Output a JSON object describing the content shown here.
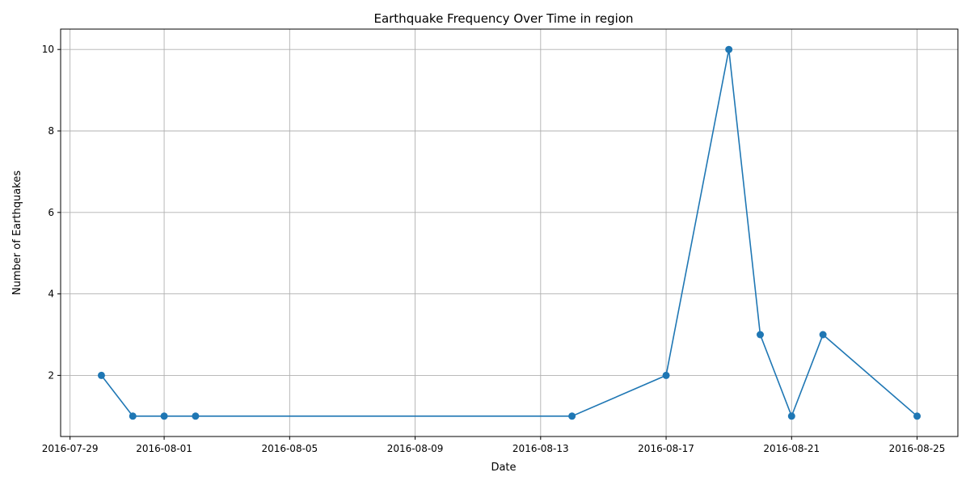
{
  "chart_data": {
    "type": "line",
    "title": "Earthquake Frequency Over Time in region",
    "xlabel": "Date",
    "ylabel": "Number of Earthquakes",
    "x_axis_type": "date",
    "xlim": [
      "2016-07-29",
      "2016-08-25"
    ],
    "ylim": [
      0.5,
      10.5
    ],
    "x_ticks": [
      "2016-07-29",
      "2016-08-01",
      "2016-08-05",
      "2016-08-09",
      "2016-08-13",
      "2016-08-17",
      "2016-08-21",
      "2016-08-25"
    ],
    "y_ticks": [
      2,
      4,
      6,
      8,
      10
    ],
    "grid": true,
    "marker": "circle",
    "series": [
      {
        "color": "#1f77b4",
        "x": [
          "2016-07-30",
          "2016-07-31",
          "2016-08-01",
          "2016-08-02",
          "2016-08-14",
          "2016-08-17",
          "2016-08-19",
          "2016-08-20",
          "2016-08-21",
          "2016-08-22",
          "2016-08-25"
        ],
        "y": [
          2,
          1,
          1,
          1,
          1,
          2,
          10,
          3,
          1,
          3,
          1
        ]
      }
    ]
  }
}
